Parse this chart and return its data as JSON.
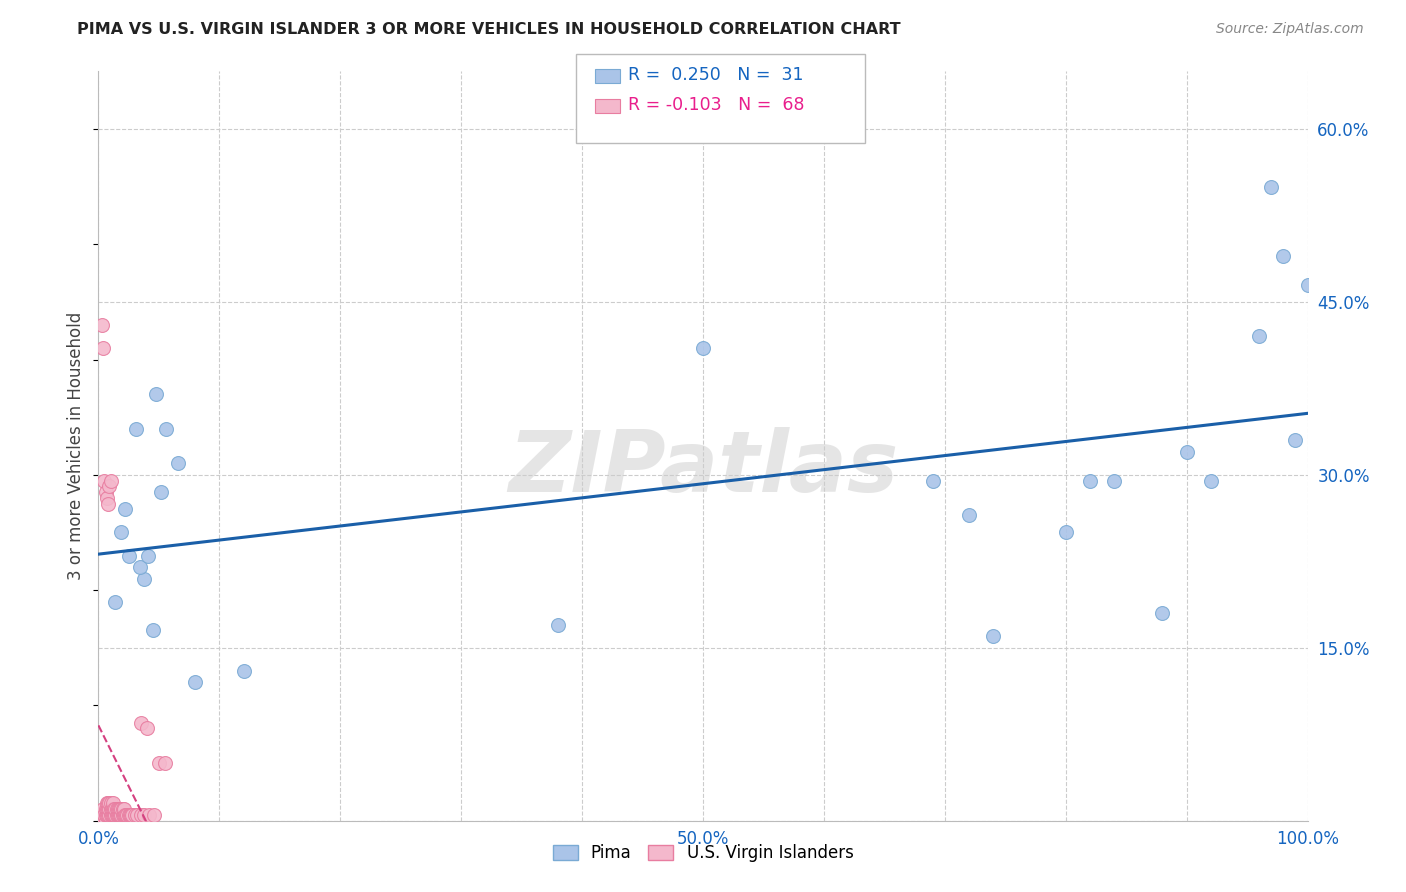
{
  "title": "PIMA VS U.S. VIRGIN ISLANDER 3 OR MORE VEHICLES IN HOUSEHOLD CORRELATION CHART",
  "source": "Source: ZipAtlas.com",
  "ylabel": "3 or more Vehicles in Household",
  "watermark": "ZIPatlas",
  "background_color": "#ffffff",
  "grid_color": "#cccccc",
  "xlim": [
    0.0,
    1.0
  ],
  "ylim": [
    0.0,
    0.65
  ],
  "xticks": [
    0.0,
    0.5,
    1.0
  ],
  "xticklabels": [
    "0.0%",
    "50.0%",
    "100.0%"
  ],
  "yticks": [
    0.0,
    0.15,
    0.3,
    0.45,
    0.6
  ],
  "yticklabels": [
    "",
    "15.0%",
    "30.0%",
    "45.0%",
    "60.0%"
  ],
  "legend_r1_color": "#1565c0",
  "legend_r2_color": "#e91e8c",
  "pima_color": "#aac4e8",
  "pima_edge_color": "#7aaad4",
  "virgin_color": "#f4b8cc",
  "virgin_edge_color": "#e87da0",
  "pima_x": [
    0.022,
    0.048,
    0.031,
    0.019,
    0.025,
    0.038,
    0.056,
    0.014,
    0.034,
    0.041,
    0.052,
    0.066,
    0.045,
    0.08,
    0.12,
    0.38,
    0.5,
    0.69,
    0.72,
    0.74,
    0.8,
    0.82,
    0.84,
    0.88,
    0.9,
    0.92,
    0.96,
    0.97,
    0.98,
    0.99,
    1.0
  ],
  "pima_y": [
    0.27,
    0.37,
    0.34,
    0.25,
    0.23,
    0.21,
    0.34,
    0.19,
    0.22,
    0.23,
    0.285,
    0.31,
    0.165,
    0.12,
    0.13,
    0.17,
    0.41,
    0.295,
    0.265,
    0.16,
    0.25,
    0.295,
    0.295,
    0.18,
    0.32,
    0.295,
    0.42,
    0.55,
    0.49,
    0.33,
    0.465
  ],
  "virgin_x": [
    0.003,
    0.004,
    0.004,
    0.005,
    0.005,
    0.006,
    0.006,
    0.006,
    0.007,
    0.007,
    0.007,
    0.008,
    0.008,
    0.008,
    0.009,
    0.009,
    0.009,
    0.01,
    0.01,
    0.01,
    0.011,
    0.011,
    0.012,
    0.012,
    0.012,
    0.013,
    0.013,
    0.014,
    0.014,
    0.015,
    0.015,
    0.016,
    0.016,
    0.017,
    0.017,
    0.018,
    0.018,
    0.019,
    0.019,
    0.02,
    0.02,
    0.021,
    0.021,
    0.022,
    0.023,
    0.024,
    0.025,
    0.026,
    0.027,
    0.028,
    0.03,
    0.032,
    0.035,
    0.038,
    0.042,
    0.046,
    0.05,
    0.055,
    0.003,
    0.004,
    0.005,
    0.006,
    0.007,
    0.008,
    0.009,
    0.01,
    0.035,
    0.04
  ],
  "virgin_y": [
    0.0,
    0.005,
    0.01,
    0.0,
    0.005,
    0.0,
    0.005,
    0.01,
    0.005,
    0.01,
    0.015,
    0.005,
    0.01,
    0.015,
    0.005,
    0.01,
    0.015,
    0.005,
    0.01,
    0.015,
    0.005,
    0.01,
    0.005,
    0.01,
    0.015,
    0.005,
    0.01,
    0.005,
    0.01,
    0.005,
    0.01,
    0.005,
    0.01,
    0.005,
    0.01,
    0.005,
    0.01,
    0.005,
    0.01,
    0.005,
    0.01,
    0.005,
    0.01,
    0.005,
    0.005,
    0.005,
    0.005,
    0.005,
    0.005,
    0.005,
    0.005,
    0.005,
    0.005,
    0.005,
    0.005,
    0.005,
    0.05,
    0.05,
    0.43,
    0.41,
    0.295,
    0.285,
    0.28,
    0.275,
    0.29,
    0.295,
    0.085,
    0.08
  ],
  "trendline_pima_color": "#1a5fa8",
  "trendline_virgin_color": "#d44080"
}
